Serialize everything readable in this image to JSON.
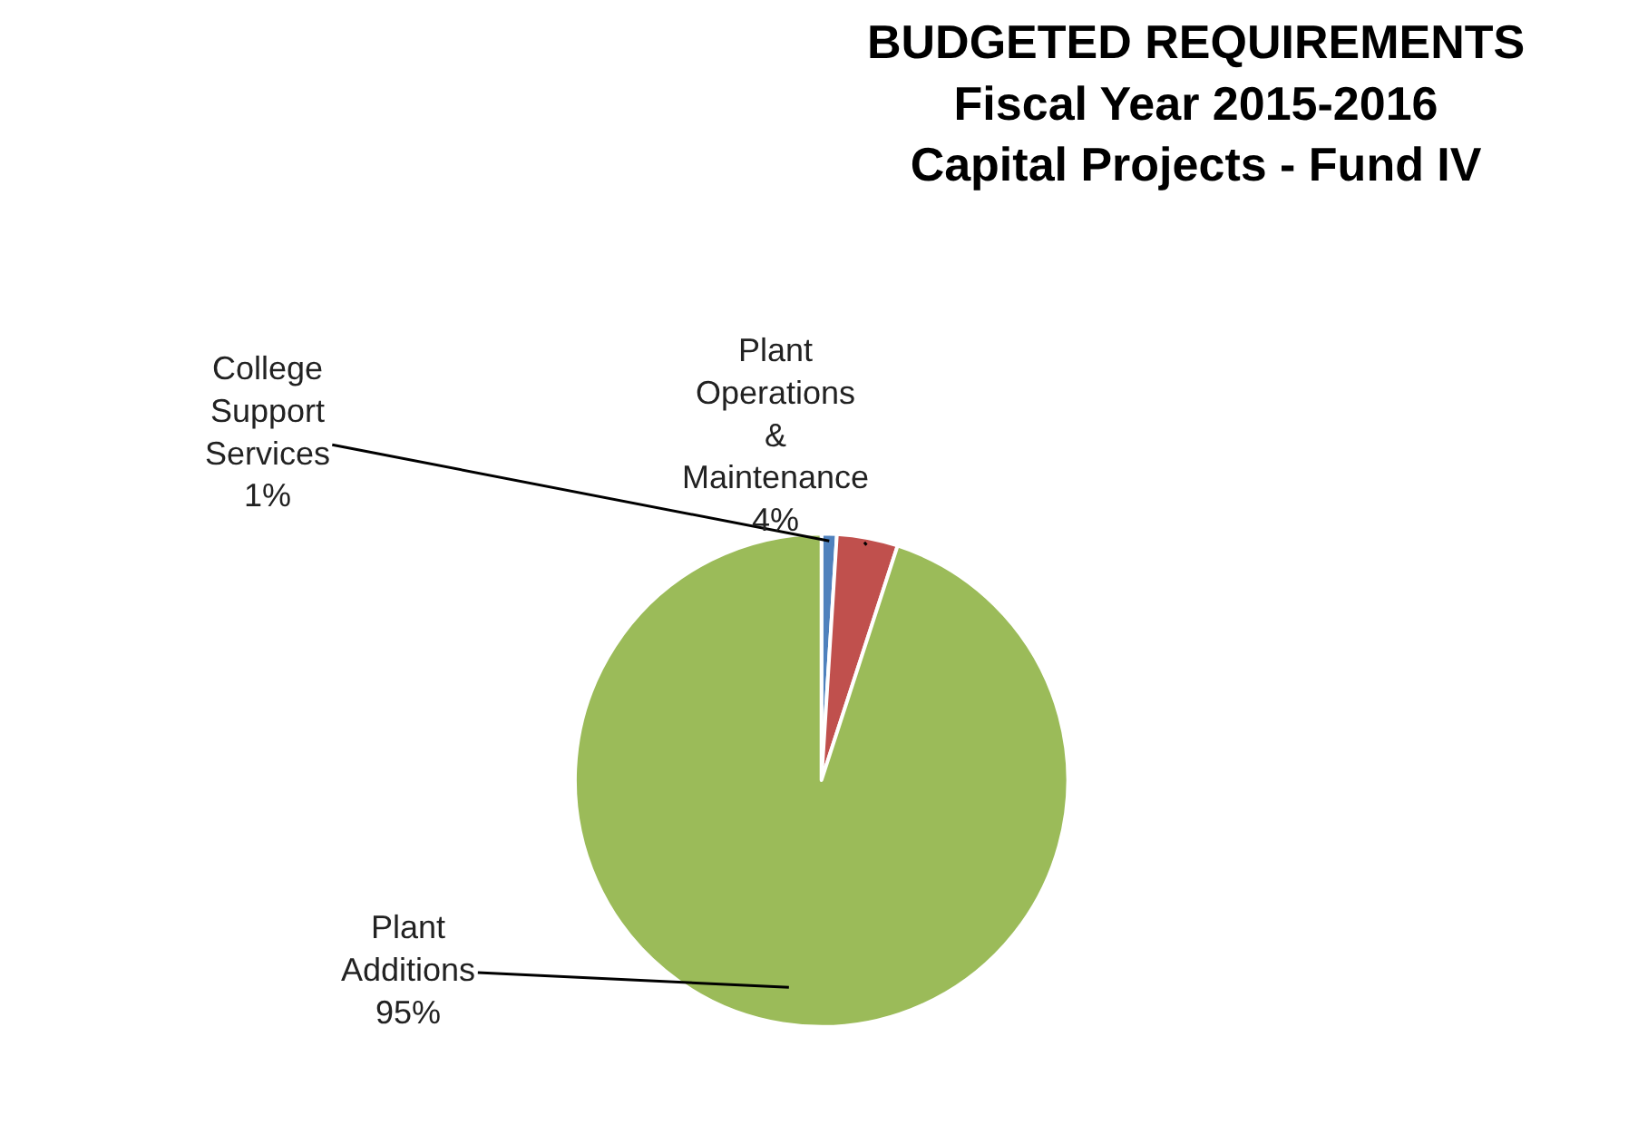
{
  "chart_data": {
    "type": "pie",
    "title": "BUDGETED REQUIREMENTS\nFiscal Year 2015-2016\nCapital Projects - Fund IV",
    "categories": [
      "College Support Services",
      "Plant Operations & Maintenance",
      "Plant Additions"
    ],
    "values": [
      1,
      4,
      95
    ],
    "value_labels": [
      "1%",
      "4%",
      "95%"
    ],
    "colors": [
      "#4f81bd",
      "#c0504d",
      "#9bbb59"
    ],
    "legend": false
  }
}
